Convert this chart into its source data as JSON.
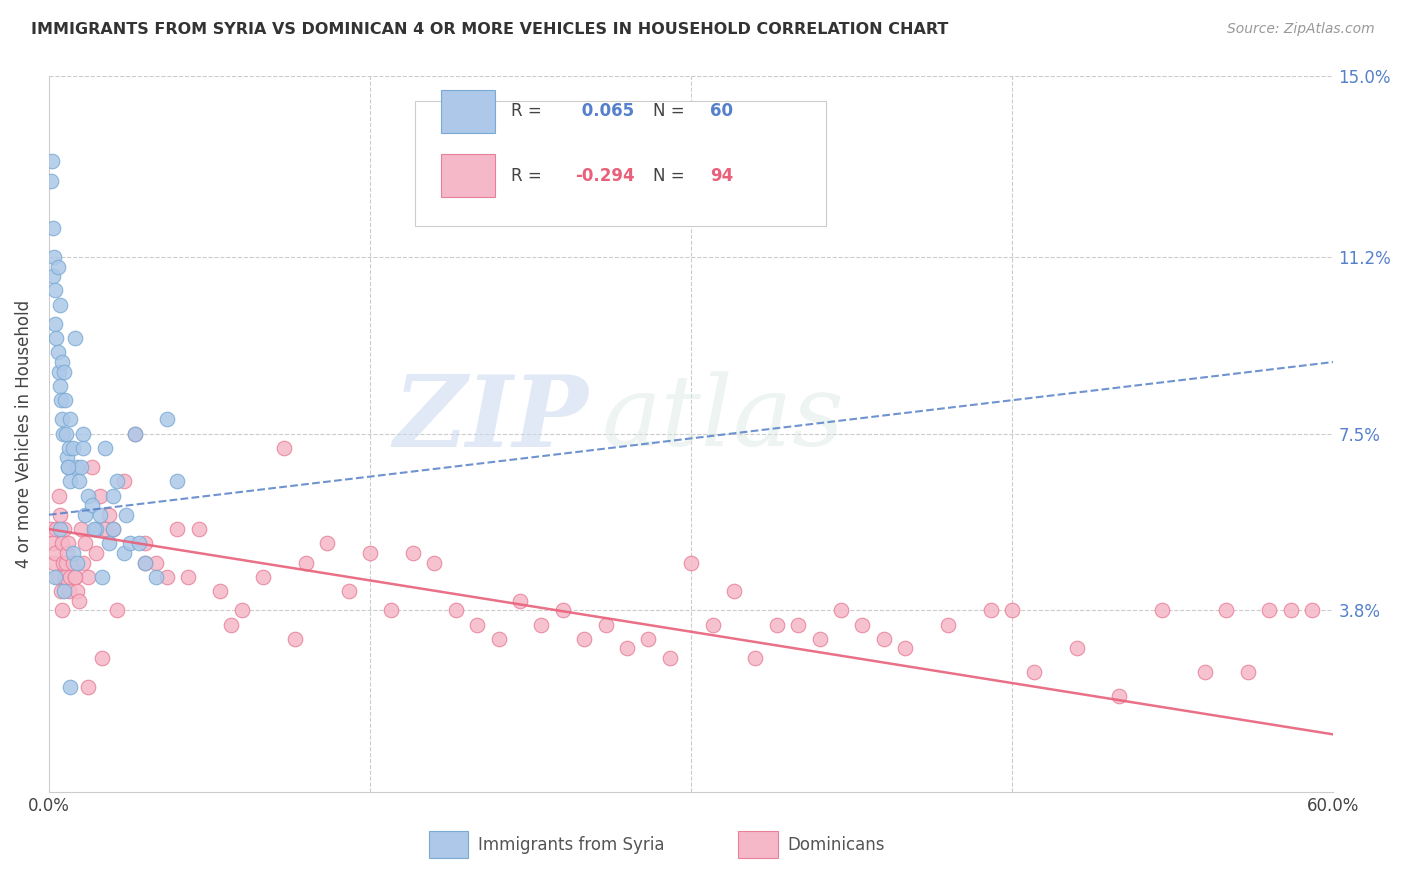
{
  "title": "IMMIGRANTS FROM SYRIA VS DOMINICAN 4 OR MORE VEHICLES IN HOUSEHOLD CORRELATION CHART",
  "source": "Source: ZipAtlas.com",
  "ylabel": "4 or more Vehicles in Household",
  "xlim": [
    0.0,
    60.0
  ],
  "ylim": [
    0.0,
    15.0
  ],
  "ytick_vals": [
    0.0,
    3.8,
    7.5,
    11.2,
    15.0
  ],
  "xtick_vals": [
    0.0,
    15.0,
    30.0,
    45.0,
    60.0
  ],
  "syria_R": 0.065,
  "syria_N": 60,
  "dominican_R": -0.294,
  "dominican_N": 94,
  "syria_color": "#adc8e8",
  "syria_edge_color": "#7aaad4",
  "dominican_color": "#f5b8c8",
  "dominican_edge_color": "#e8809a",
  "syria_trend_color": "#5580c8",
  "dominican_trend_color": "#e8607a",
  "watermark_zip": "ZIP",
  "watermark_atlas": "atlas",
  "legend_syria_label": "Immigrants from Syria",
  "legend_dominican_label": "Dominicans",
  "syria_x": [
    0.1,
    0.15,
    0.2,
    0.2,
    0.25,
    0.3,
    0.3,
    0.35,
    0.4,
    0.4,
    0.45,
    0.5,
    0.5,
    0.55,
    0.6,
    0.6,
    0.65,
    0.7,
    0.75,
    0.8,
    0.85,
    0.9,
    0.95,
    1.0,
    1.0,
    1.1,
    1.2,
    1.3,
    1.4,
    1.5,
    1.6,
    1.7,
    1.8,
    2.0,
    2.2,
    2.4,
    2.6,
    2.8,
    3.0,
    3.2,
    3.5,
    3.8,
    4.0,
    4.5,
    5.0,
    5.5,
    6.0,
    0.3,
    0.5,
    0.7,
    0.9,
    1.1,
    1.3,
    1.6,
    2.1,
    2.5,
    3.0,
    3.6,
    4.2,
    1.0
  ],
  "syria_y": [
    12.8,
    13.2,
    11.8,
    10.8,
    11.2,
    10.5,
    9.8,
    9.5,
    9.2,
    11.0,
    8.8,
    8.5,
    10.2,
    8.2,
    9.0,
    7.8,
    7.5,
    8.8,
    8.2,
    7.5,
    7.0,
    6.8,
    7.2,
    6.5,
    7.8,
    7.2,
    9.5,
    6.8,
    6.5,
    6.8,
    7.5,
    5.8,
    6.2,
    6.0,
    5.5,
    5.8,
    7.2,
    5.2,
    5.5,
    6.5,
    5.0,
    5.2,
    7.5,
    4.8,
    4.5,
    7.8,
    6.5,
    4.5,
    5.5,
    4.2,
    6.8,
    5.0,
    4.8,
    7.2,
    5.5,
    4.5,
    6.2,
    5.8,
    5.2,
    2.2
  ],
  "dominican_x": [
    0.1,
    0.2,
    0.25,
    0.3,
    0.35,
    0.4,
    0.45,
    0.5,
    0.55,
    0.6,
    0.65,
    0.7,
    0.75,
    0.8,
    0.85,
    0.9,
    0.95,
    1.0,
    1.1,
    1.2,
    1.3,
    1.4,
    1.5,
    1.6,
    1.7,
    1.8,
    2.0,
    2.2,
    2.4,
    2.6,
    2.8,
    3.0,
    3.5,
    4.0,
    4.5,
    5.0,
    5.5,
    6.0,
    7.0,
    8.0,
    9.0,
    10.0,
    11.0,
    12.0,
    13.0,
    14.0,
    15.0,
    16.0,
    17.0,
    18.0,
    19.0,
    20.0,
    21.0,
    22.0,
    23.0,
    24.0,
    25.0,
    26.0,
    27.0,
    28.0,
    29.0,
    30.0,
    31.0,
    32.0,
    33.0,
    34.0,
    35.0,
    36.0,
    37.0,
    38.0,
    39.0,
    40.0,
    42.0,
    44.0,
    45.0,
    46.0,
    48.0,
    50.0,
    52.0,
    54.0,
    55.0,
    56.0,
    57.0,
    58.0,
    59.0,
    3.2,
    2.5,
    1.8,
    1.2,
    0.6,
    4.5,
    6.5,
    8.5,
    11.5
  ],
  "dominican_y": [
    5.5,
    5.2,
    4.8,
    5.0,
    5.5,
    4.5,
    6.2,
    5.8,
    4.2,
    5.2,
    4.8,
    5.5,
    4.5,
    4.8,
    5.0,
    5.2,
    4.2,
    4.5,
    4.8,
    4.5,
    4.2,
    4.0,
    5.5,
    4.8,
    5.2,
    4.5,
    6.8,
    5.0,
    6.2,
    5.5,
    5.8,
    5.5,
    6.5,
    7.5,
    5.2,
    4.8,
    4.5,
    5.5,
    5.5,
    4.2,
    3.8,
    4.5,
    7.2,
    4.8,
    5.2,
    4.2,
    5.0,
    3.8,
    5.0,
    4.8,
    3.8,
    3.5,
    3.2,
    4.0,
    3.5,
    3.8,
    3.2,
    3.5,
    3.0,
    3.2,
    2.8,
    4.8,
    3.5,
    4.2,
    2.8,
    3.5,
    3.5,
    3.2,
    3.8,
    3.5,
    3.2,
    3.0,
    3.5,
    3.8,
    3.8,
    2.5,
    3.0,
    2.0,
    3.8,
    2.5,
    3.8,
    2.5,
    3.8,
    3.8,
    3.8,
    3.8,
    2.8,
    2.2,
    4.5,
    3.8,
    4.8,
    4.5,
    3.5,
    3.2
  ],
  "syria_trend_x0": 0.0,
  "syria_trend_x1": 60.0,
  "syria_trend_y0": 5.8,
  "syria_trend_y1": 9.0,
  "dominican_trend_x0": 0.0,
  "dominican_trend_x1": 60.0,
  "dominican_trend_y0": 5.5,
  "dominican_trend_y1": 1.2
}
